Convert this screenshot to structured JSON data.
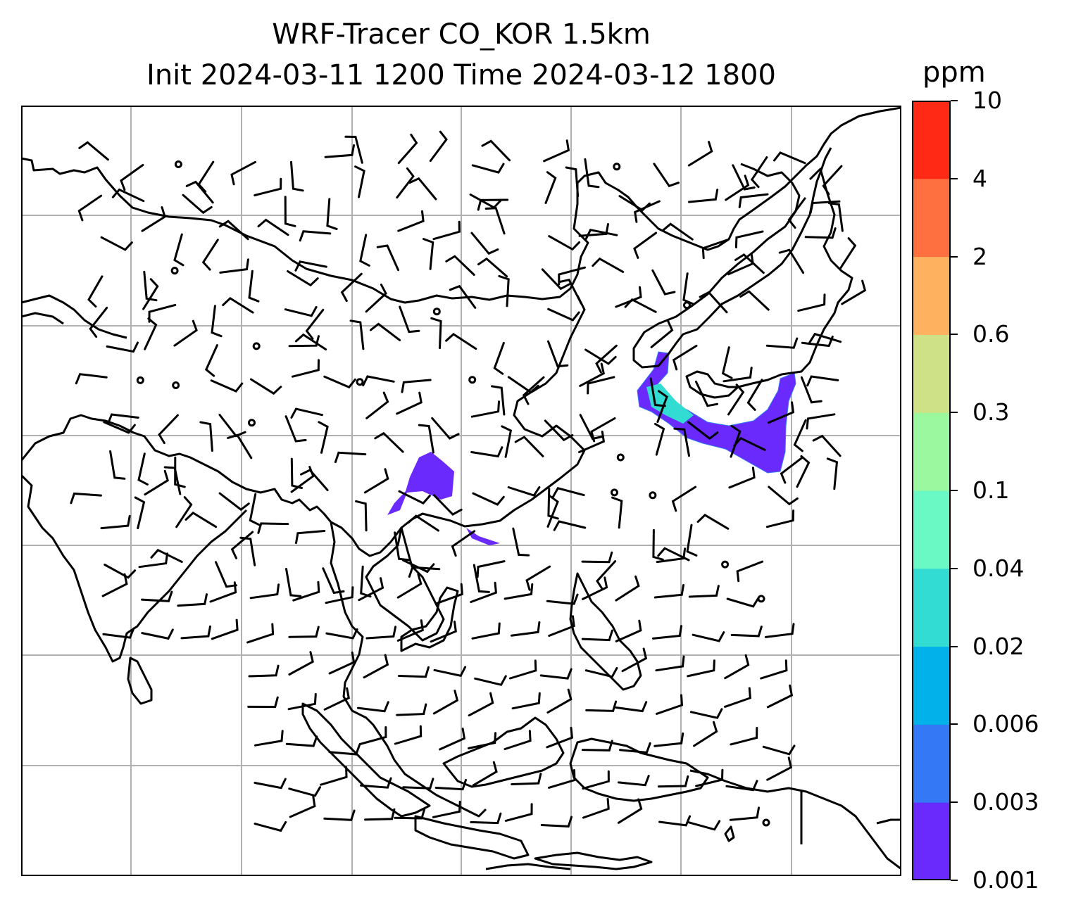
{
  "title": {
    "line1": "WRF-Tracer CO_KOR 1.5km",
    "line2": "Init 2024-03-11 1200 Time 2024-03-12 1800"
  },
  "colorbar": {
    "unit": "ppm",
    "levels": [
      "0.001",
      "0.003",
      "0.006",
      "0.02",
      "0.04",
      "0.1",
      "0.3",
      "0.6",
      "2",
      "4",
      "10"
    ],
    "colors": [
      "#6a2afc",
      "#3478f6",
      "#02b1e9",
      "#33dcd2",
      "#6af9c4",
      "#9bf89e",
      "#cfe186",
      "#feb260",
      "#ff7040",
      "#ff2916"
    ]
  },
  "map": {
    "gridlines": true,
    "plume_color": "#6a2afc",
    "plume_edge_color": "#3478f6",
    "plume_mid_color": "#33dcd2"
  }
}
